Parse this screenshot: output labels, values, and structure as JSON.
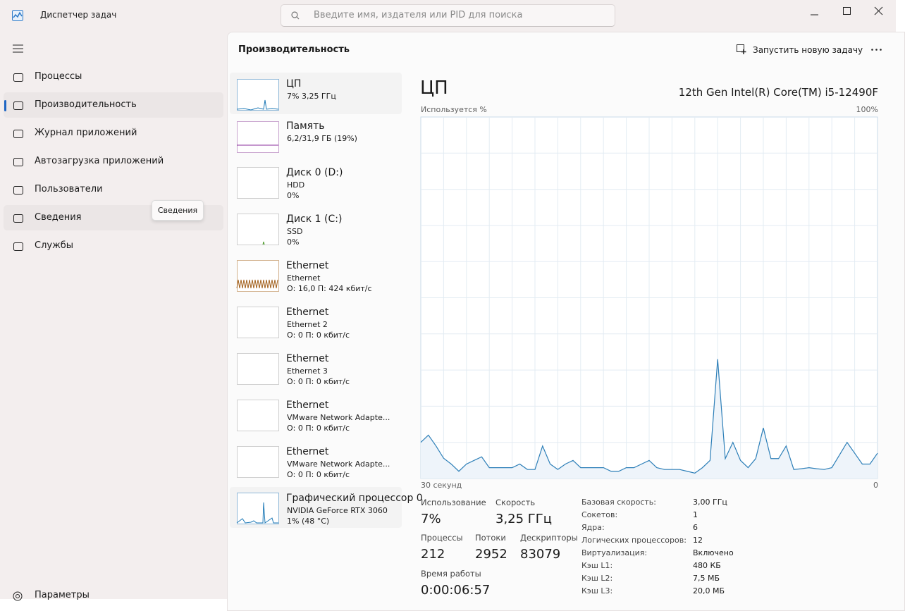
{
  "window": {
    "title": "Диспетчер задач",
    "search_placeholder": "Введите имя, издателя или PID для поиска"
  },
  "nav": {
    "items": [
      "Процессы",
      "Производительность",
      "Журнал приложений",
      "Автозагрузка приложений",
      "Пользователи",
      "Сведения",
      "Службы"
    ],
    "tooltip": "Сведения",
    "settings": "Параметры"
  },
  "header": {
    "title": "Производительность",
    "run_task": "Запустить новую задачу"
  },
  "devices": [
    {
      "name": "ЦП",
      "lines": [
        "7% 3,25 ГГц"
      ]
    },
    {
      "name": "Память",
      "lines": [
        "6,2/31,9 ГБ (19%)"
      ]
    },
    {
      "name": "Диск 0 (D:)",
      "lines": [
        "HDD",
        "0%"
      ]
    },
    {
      "name": "Диск 1 (C:)",
      "lines": [
        "SSD",
        "0%"
      ]
    },
    {
      "name": "Ethernet",
      "lines": [
        "Ethernet",
        "О: 16,0 П: 424 кбит/с"
      ]
    },
    {
      "name": "Ethernet",
      "lines": [
        "Ethernet 2",
        "О: 0 П: 0 кбит/с"
      ]
    },
    {
      "name": "Ethernet",
      "lines": [
        "Ethernet 3",
        "О: 0 П: 0 кбит/с"
      ]
    },
    {
      "name": "Ethernet",
      "lines": [
        "VMware Network Adapte...",
        "О: 0 П: 0 кбит/с"
      ]
    },
    {
      "name": "Ethernet",
      "lines": [
        "VMware Network Adapte...",
        "О: 0 П: 0 кбит/с"
      ]
    },
    {
      "name": "Графический процессор 0",
      "lines": [
        "NVIDIA GeForce RTX 3060",
        "1% (48 °C)"
      ]
    }
  ],
  "cpu": {
    "title": "ЦП",
    "model": "12th Gen Intel(R) Core(TM) i5-12490F",
    "graph": {
      "type": "line",
      "y_label": "Используется %",
      "max_label": "100%",
      "x_label_left": "30 секунд",
      "x_label_right": "0",
      "ylim": [
        0,
        100
      ],
      "values": [
        10,
        12,
        9,
        5.6,
        4,
        2,
        4,
        5,
        6,
        3,
        3,
        3,
        3,
        4,
        2.5,
        2.5,
        9,
        4,
        2.5,
        4,
        5,
        3,
        3,
        3,
        3,
        2,
        2,
        3,
        3,
        4,
        5,
        3,
        2.5,
        2.5,
        2.5,
        2,
        1.5,
        3,
        5,
        33,
        5.5,
        10,
        5,
        3,
        5.5,
        14,
        5.5,
        5.5,
        9,
        2.5,
        2.7,
        3,
        2.7,
        2.5,
        3,
        6.5,
        10,
        7,
        4,
        4,
        7
      ]
    },
    "stats": [
      {
        "label": "Использование",
        "value": "7%"
      },
      {
        "label": "Скорость",
        "value": "3,25 ГГц"
      },
      {
        "label": "Процессы",
        "value": "212"
      },
      {
        "label": "Потоки",
        "value": "2952"
      },
      {
        "label": "Дескрипторы",
        "value": "83079"
      },
      {
        "label": "Время работы",
        "value": "0:00:06:57"
      }
    ],
    "specs": [
      [
        "Базовая скорость:",
        "3,00 ГГц"
      ],
      [
        "Сокетов:",
        "1"
      ],
      [
        "Ядра:",
        "6"
      ],
      [
        "Логических процессоров:",
        "12"
      ],
      [
        "Виртуализация:",
        "Включено"
      ],
      [
        "Кэш L1:",
        "480 КБ"
      ],
      [
        "Кэш L2:",
        "7,5 МБ"
      ],
      [
        "Кэш L3:",
        "20,0 МБ"
      ]
    ]
  }
}
